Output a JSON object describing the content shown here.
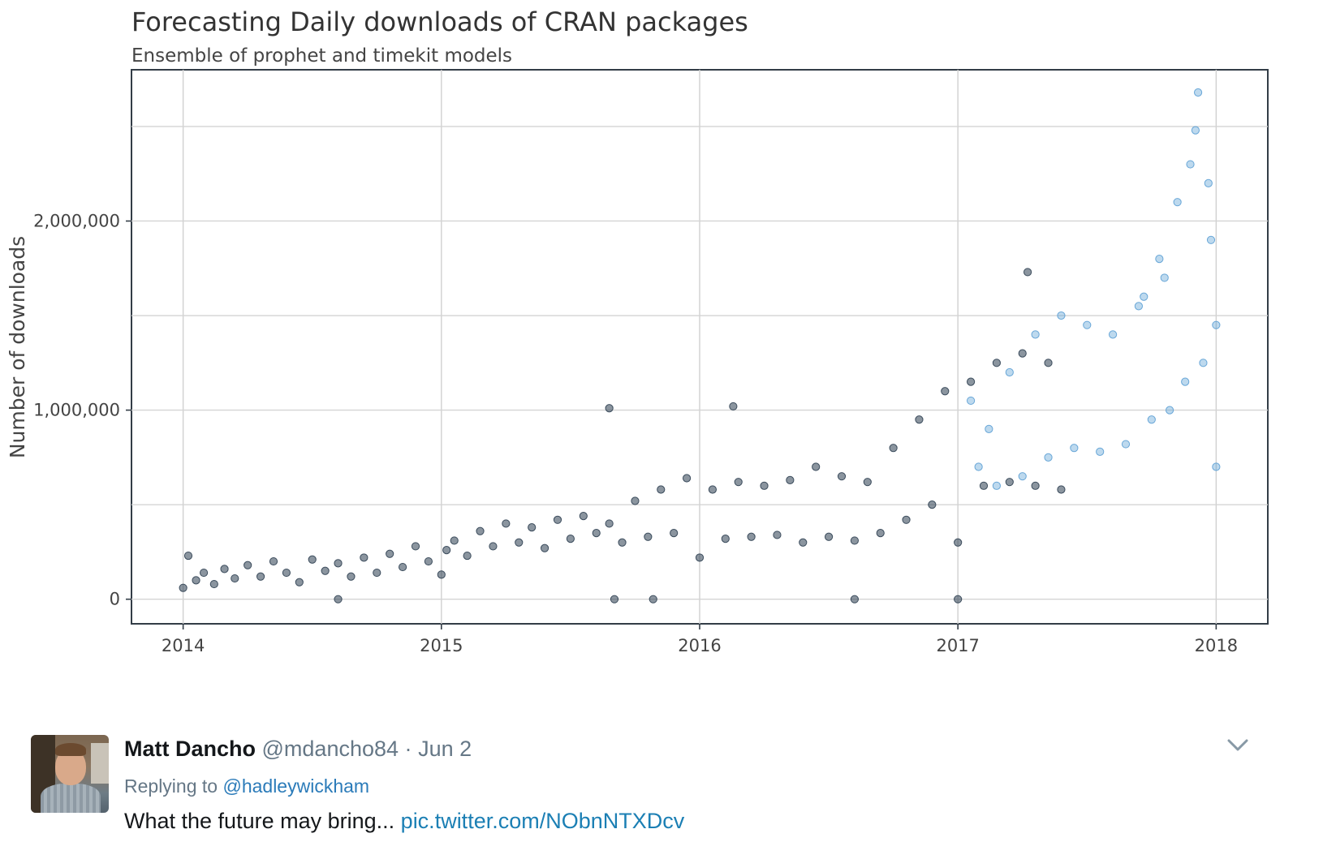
{
  "chart_data": {
    "type": "scatter",
    "title": "Forecasting Daily downloads of CRAN packages",
    "subtitle": "Ensemble of prophet and timekit models",
    "ylabel": "Number of downloads",
    "xlabel": "",
    "xlim": [
      2013.8,
      2018.2
    ],
    "ylim": [
      -130000,
      2800000
    ],
    "x_ticks": [
      {
        "value": 2014,
        "label": "2014"
      },
      {
        "value": 2015,
        "label": "2015"
      },
      {
        "value": 2016,
        "label": "2016"
      },
      {
        "value": 2017,
        "label": "2017"
      },
      {
        "value": 2018,
        "label": "2018"
      }
    ],
    "y_ticks": [
      {
        "value": 0,
        "label": "0"
      },
      {
        "value": 1000000,
        "label": "1,000,000"
      },
      {
        "value": 2000000,
        "label": "2,000,000"
      }
    ],
    "grid": true,
    "series": [
      {
        "color": "#2c3e50",
        "points": [
          [
            2014.0,
            60000
          ],
          [
            2014.02,
            230000
          ],
          [
            2014.05,
            100000
          ],
          [
            2014.08,
            140000
          ],
          [
            2014.12,
            80000
          ],
          [
            2014.16,
            160000
          ],
          [
            2014.2,
            110000
          ],
          [
            2014.25,
            180000
          ],
          [
            2014.3,
            120000
          ],
          [
            2014.35,
            200000
          ],
          [
            2014.4,
            140000
          ],
          [
            2014.45,
            90000
          ],
          [
            2014.5,
            210000
          ],
          [
            2014.55,
            150000
          ],
          [
            2014.6,
            190000
          ],
          [
            2014.65,
            120000
          ],
          [
            2014.7,
            220000
          ],
          [
            2014.75,
            140000
          ],
          [
            2014.8,
            240000
          ],
          [
            2014.85,
            170000
          ],
          [
            2014.9,
            280000
          ],
          [
            2014.95,
            200000
          ],
          [
            2015.0,
            130000
          ],
          [
            2015.02,
            260000
          ],
          [
            2015.05,
            310000
          ],
          [
            2015.1,
            230000
          ],
          [
            2015.15,
            360000
          ],
          [
            2015.2,
            280000
          ],
          [
            2015.25,
            400000
          ],
          [
            2015.3,
            300000
          ],
          [
            2015.35,
            380000
          ],
          [
            2015.4,
            270000
          ],
          [
            2015.45,
            420000
          ],
          [
            2015.5,
            320000
          ],
          [
            2015.55,
            440000
          ],
          [
            2015.6,
            350000
          ],
          [
            2015.65,
            400000
          ],
          [
            2015.7,
            300000
          ],
          [
            2015.75,
            520000
          ],
          [
            2015.8,
            330000
          ],
          [
            2015.85,
            580000
          ],
          [
            2015.9,
            350000
          ],
          [
            2015.95,
            640000
          ],
          [
            2016.0,
            220000
          ],
          [
            2016.05,
            580000
          ],
          [
            2016.1,
            320000
          ],
          [
            2016.15,
            620000
          ],
          [
            2016.2,
            330000
          ],
          [
            2016.25,
            600000
          ],
          [
            2016.3,
            340000
          ],
          [
            2016.35,
            630000
          ],
          [
            2016.4,
            300000
          ],
          [
            2016.45,
            700000
          ],
          [
            2016.5,
            330000
          ],
          [
            2016.55,
            650000
          ],
          [
            2016.6,
            310000
          ],
          [
            2016.65,
            620000
          ],
          [
            2016.7,
            350000
          ],
          [
            2016.75,
            800000
          ],
          [
            2016.8,
            420000
          ],
          [
            2016.85,
            950000
          ],
          [
            2016.9,
            500000
          ],
          [
            2016.95,
            1100000
          ],
          [
            2017.0,
            300000
          ],
          [
            2017.05,
            1150000
          ],
          [
            2017.1,
            600000
          ],
          [
            2017.15,
            1250000
          ],
          [
            2017.2,
            620000
          ],
          [
            2017.25,
            1300000
          ],
          [
            2017.3,
            600000
          ],
          [
            2017.35,
            1250000
          ],
          [
            2017.4,
            580000
          ],
          [
            2014.6,
            0
          ],
          [
            2015.65,
            1010000
          ],
          [
            2016.13,
            1020000
          ],
          [
            2015.67,
            0
          ],
          [
            2015.82,
            0
          ],
          [
            2016.6,
            0
          ],
          [
            2017.0,
            0
          ],
          [
            2017.27,
            1730000
          ]
        ]
      },
      {
        "color": "#5b9fd4",
        "points": [
          [
            2017.05,
            1050000
          ],
          [
            2017.08,
            700000
          ],
          [
            2017.12,
            900000
          ],
          [
            2017.15,
            600000
          ],
          [
            2017.2,
            1200000
          ],
          [
            2017.25,
            650000
          ],
          [
            2017.3,
            1400000
          ],
          [
            2017.35,
            750000
          ],
          [
            2017.4,
            1500000
          ],
          [
            2017.45,
            800000
          ],
          [
            2017.5,
            1450000
          ],
          [
            2017.55,
            780000
          ],
          [
            2017.6,
            1400000
          ],
          [
            2017.65,
            820000
          ],
          [
            2017.7,
            1550000
          ],
          [
            2017.75,
            950000
          ],
          [
            2017.78,
            1800000
          ],
          [
            2017.82,
            1000000
          ],
          [
            2017.85,
            2100000
          ],
          [
            2017.88,
            1150000
          ],
          [
            2017.9,
            2300000
          ],
          [
            2017.92,
            2480000
          ],
          [
            2017.95,
            1250000
          ],
          [
            2017.97,
            2200000
          ],
          [
            2017.98,
            1900000
          ],
          [
            2018.0,
            1450000
          ],
          [
            2018.0,
            700000
          ],
          [
            2017.93,
            2680000
          ],
          [
            2017.8,
            1700000
          ],
          [
            2017.72,
            1600000
          ]
        ]
      }
    ]
  },
  "tweet": {
    "author_name": "Matt Dancho",
    "author_handle": "@mdancho84",
    "separator": "·",
    "date": "Jun 2",
    "replying_prefix": "Replying to",
    "replying_handle": "@hadleywickham",
    "text": "What the future may bring...",
    "link": "pic.twitter.com/NObnNTXDcv",
    "icons": {
      "avatar": "avatar-photo",
      "menu": "chevron-down-icon"
    }
  }
}
